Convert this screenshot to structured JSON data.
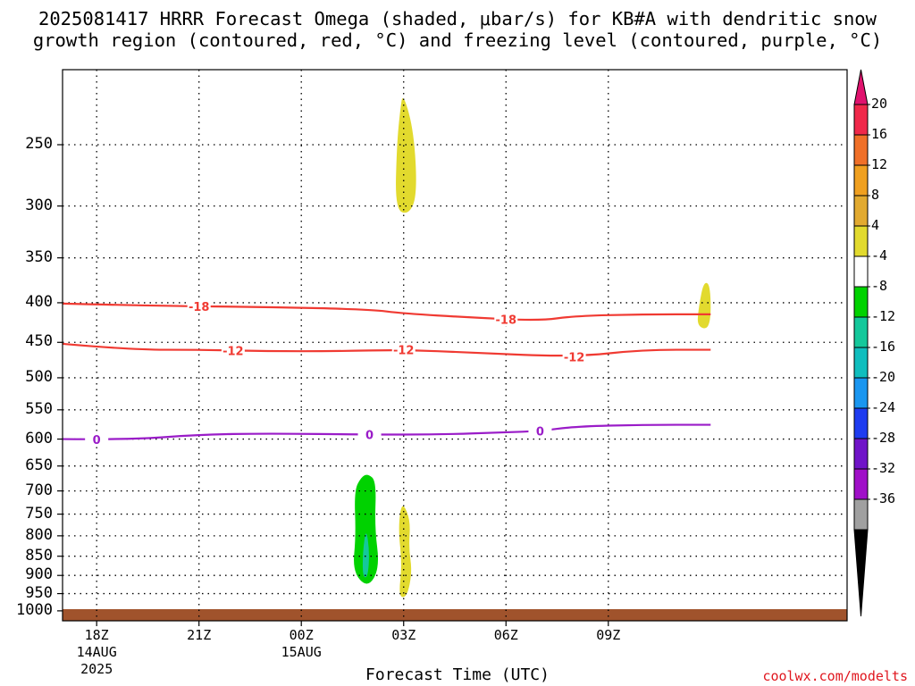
{
  "title_line1": "2025081417 HRRR Forecast Omega (shaded, μbar/s) for KB#A with dendritic snow",
  "title_line2": "growth region (contoured, red, °C) and freezing level (contoured, purple, °C)",
  "credit": "coolwx.com/modelts",
  "chart_data": {
    "type": "contour",
    "xlabel": "Forecast Time (UTC)",
    "ylabel": "",
    "y_axis": "pressure (mb), log-reversed",
    "ylim": [
      1000,
      200
    ],
    "yticks": [
      250,
      300,
      350,
      400,
      450,
      500,
      550,
      600,
      650,
      700,
      750,
      800,
      850,
      900,
      950,
      1000
    ],
    "xlim_hours": [
      -1,
      22
    ],
    "xticks": [
      {
        "hour": 0,
        "label": "18Z",
        "sub1": "14AUG",
        "sub2": "2025"
      },
      {
        "hour": 3,
        "label": "21Z",
        "sub1": "",
        "sub2": ""
      },
      {
        "hour": 6,
        "label": "00Z",
        "sub1": "15AUG",
        "sub2": ""
      },
      {
        "hour": 9,
        "label": "03Z",
        "sub1": "",
        "sub2": ""
      },
      {
        "hour": 12,
        "label": "06Z",
        "sub1": "",
        "sub2": ""
      },
      {
        "hour": 15,
        "label": "09Z",
        "sub1": "",
        "sub2": ""
      }
    ],
    "grid": true,
    "contours": [
      {
        "label": "-18",
        "color": "#f03a32",
        "points": [
          [
            -1,
            401
          ],
          [
            2,
            404
          ],
          [
            5,
            405
          ],
          [
            8,
            408
          ],
          [
            9,
            413
          ],
          [
            11,
            418
          ],
          [
            13,
            422
          ],
          [
            14,
            416
          ],
          [
            16,
            414
          ],
          [
            18,
            414
          ]
        ],
        "label_hours": [
          3,
          12
        ]
      },
      {
        "label": "-12",
        "color": "#f03a32",
        "points": [
          [
            -1,
            452
          ],
          [
            1,
            460
          ],
          [
            3,
            460
          ],
          [
            5,
            462
          ],
          [
            7,
            462
          ],
          [
            9,
            460
          ],
          [
            11,
            464
          ],
          [
            14,
            470
          ],
          [
            16,
            460
          ],
          [
            18,
            460
          ]
        ],
        "label_hours": [
          4,
          9,
          14
        ]
      },
      {
        "label": "0",
        "color": "#9a1cc8",
        "points": [
          [
            -1,
            600
          ],
          [
            1,
            601
          ],
          [
            3,
            592
          ],
          [
            5,
            590
          ],
          [
            8,
            592
          ],
          [
            10,
            592
          ],
          [
            12,
            588
          ],
          [
            13,
            586
          ],
          [
            14,
            578
          ],
          [
            16,
            575
          ],
          [
            18,
            575
          ]
        ],
        "label_hours": [
          0,
          8,
          13
        ]
      }
    ],
    "omega_regions": [
      {
        "color": "#e2da2e",
        "points": [
          [
            8.98,
            214
          ],
          [
            9.3,
            240
          ],
          [
            9.4,
            290
          ],
          [
            9.15,
            308
          ],
          [
            8.75,
            303
          ],
          [
            8.8,
            250
          ],
          [
            8.9,
            225
          ]
        ]
      },
      {
        "color": "#e2da2e",
        "points": [
          [
            17.8,
            375
          ],
          [
            18,
            380
          ],
          [
            18,
            433
          ],
          [
            17.6,
            430
          ],
          [
            17.65,
            405
          ]
        ]
      },
      {
        "color": "#e2da2e",
        "points": [
          [
            9.0,
            728
          ],
          [
            9.2,
            765
          ],
          [
            9.15,
            830
          ],
          [
            9.25,
            890
          ],
          [
            9.1,
            960
          ],
          [
            8.85,
            960
          ],
          [
            8.95,
            870
          ],
          [
            8.85,
            790
          ],
          [
            8.9,
            740
          ]
        ]
      },
      {
        "color": "#00d200",
        "points": [
          [
            7.95,
            665
          ],
          [
            8.2,
            680
          ],
          [
            8.15,
            780
          ],
          [
            8.3,
            880
          ],
          [
            7.95,
            935
          ],
          [
            7.5,
            890
          ],
          [
            7.6,
            800
          ],
          [
            7.55,
            700
          ],
          [
            7.75,
            672
          ]
        ]
      },
      {
        "color": "#14c89b",
        "points": [
          [
            7.9,
            780
          ],
          [
            8.0,
            840
          ],
          [
            7.95,
            905
          ],
          [
            7.8,
            905
          ],
          [
            7.8,
            840
          ]
        ]
      }
    ],
    "surface_color": "#a0532c",
    "colorbar": {
      "labels": [
        "20",
        "16",
        "12",
        "8",
        "4",
        "-4",
        "-8",
        "-12",
        "-16",
        "-20",
        "-24",
        "-28",
        "-32",
        "-36"
      ],
      "colors": [
        "#f0284a",
        "#f07028",
        "#f0a020",
        "#e2aa30",
        "#e2da2e",
        "#ffffff",
        "#00d200",
        "#14c89b",
        "#10bebe",
        "#1a96f0",
        "#1e3cf0",
        "#7014c8",
        "#a010c8",
        "#a0a0a0"
      ],
      "top_color": "#e0126e",
      "bottom_color": "#000000"
    }
  }
}
